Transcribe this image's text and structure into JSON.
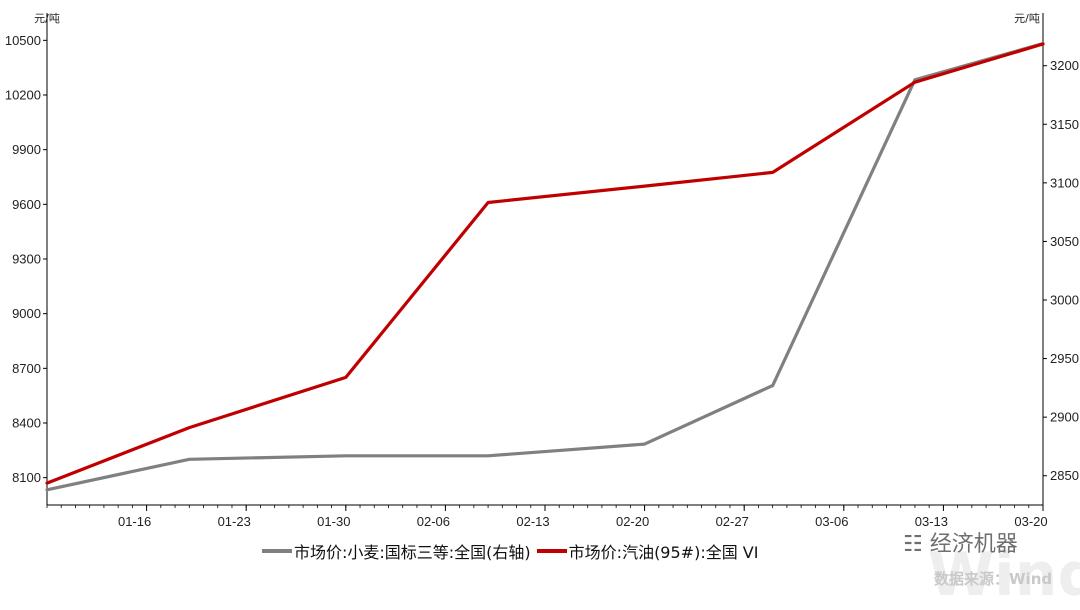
{
  "chart_data": {
    "type": "line",
    "left_unit": "元/吨",
    "right_unit": "元/吨",
    "left_axis": {
      "min": 7950,
      "max": 10650,
      "ticks": [
        "8100",
        "8400",
        "8700",
        "9000",
        "9300",
        "9600",
        "9900",
        "10200",
        "10500"
      ]
    },
    "right_axis": {
      "min": 2825,
      "max": 3245,
      "ticks": [
        "2850",
        "2900",
        "2950",
        "3000",
        "3050",
        "3100",
        "3150",
        "3200"
      ]
    },
    "x_ticks": [
      "01-16",
      "01-23",
      "01-30",
      "02-06",
      "02-13",
      "02-20",
      "02-27",
      "03-06",
      "03-13",
      "03-20"
    ],
    "x_range": [
      "01-09",
      "03-20"
    ],
    "series": [
      {
        "name": "市场价:小麦:国标三等:全国(右轴)",
        "axis": "right",
        "color": "#808080",
        "x": [
          "01-09",
          "01-19",
          "01-30",
          "02-09",
          "02-20",
          "03-01",
          "03-11",
          "03-20"
        ],
        "values": [
          2838,
          2864,
          2867,
          2867,
          2877,
          2927,
          3188,
          3219
        ]
      },
      {
        "name": "市场价:汽油(95#):全国 VI",
        "axis": "left",
        "color": "#c00000",
        "x": [
          "01-09",
          "01-19",
          "01-30",
          "02-09",
          "02-20",
          "03-01",
          "03-11",
          "03-20"
        ],
        "values": [
          8070,
          8375,
          8650,
          9610,
          9700,
          9775,
          10270,
          10480
        ]
      }
    ],
    "legend_position": "bottom",
    "grid": false
  },
  "watermark": {
    "brand": "经济机器",
    "source": "数据来源：Wind",
    "faint_text": "Wind"
  }
}
